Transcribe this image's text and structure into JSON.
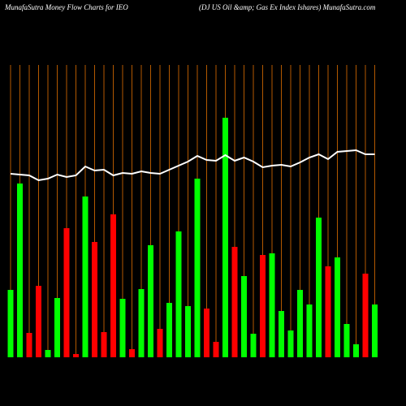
{
  "chart_data": {
    "type": "bar",
    "title": "MunafaSutra  Money Flow  Charts for IEO",
    "subtitle": "(DJ US Oil &amp; Gas Ex Index Ishares) MunafaSutra.com",
    "categories": [
      null,
      null,
      null,
      null,
      null,
      null,
      null,
      null,
      null,
      null,
      null,
      null,
      null,
      null,
      null,
      null,
      null,
      null,
      null,
      null,
      null,
      null,
      null,
      null,
      null,
      null,
      null,
      null,
      null,
      null,
      null,
      null,
      null,
      null,
      null,
      null,
      null,
      null,
      null,
      null
    ],
    "values": [
      83,
      214,
      30,
      88,
      9,
      73,
      159,
      4,
      198,
      142,
      31,
      176,
      72,
      10,
      84,
      138,
      35,
      67,
      155,
      63,
      220,
      60,
      19,
      295,
      136,
      100,
      29,
      126,
      128,
      57,
      33,
      83,
      65,
      172,
      112,
      123,
      41,
      16,
      103,
      65
    ],
    "bar_colors": [
      "#00ff00",
      "#00ff00",
      "#ff0000",
      "#ff0000",
      "#00ff00",
      "#00ff00",
      "#ff0000",
      "#ff0000",
      "#00ff00",
      "#ff0000",
      "#ff0000",
      "#ff0000",
      "#00ff00",
      "#ff0000",
      "#00ff00",
      "#00ff00",
      "#ff0000",
      "#00ff00",
      "#00ff00",
      "#00ff00",
      "#00ff00",
      "#ff0000",
      "#ff0000",
      "#00ff00",
      "#ff0000",
      "#00ff00",
      "#00ff00",
      "#ff0000",
      "#00ff00",
      "#00ff00",
      "#00ff00",
      "#00ff00",
      "#00ff00",
      "#00ff00",
      "#ff0000",
      "#00ff00",
      "#00ff00",
      "#00ff00",
      "#ff0000",
      "#00ff00"
    ],
    "line": {
      "color": "#ffffff",
      "values": [
        226,
        225,
        224,
        218,
        220,
        225,
        222,
        224,
        235,
        230,
        231,
        224,
        227,
        226,
        229,
        227,
        226,
        231,
        236,
        241,
        248,
        243,
        242,
        249,
        242,
        246,
        241,
        234,
        236,
        237,
        235,
        240,
        246,
        250,
        244,
        253,
        254,
        255,
        250,
        250
      ]
    },
    "ylim": [
      0,
      300
    ],
    "grid": true,
    "grid_color": "#b35900"
  }
}
